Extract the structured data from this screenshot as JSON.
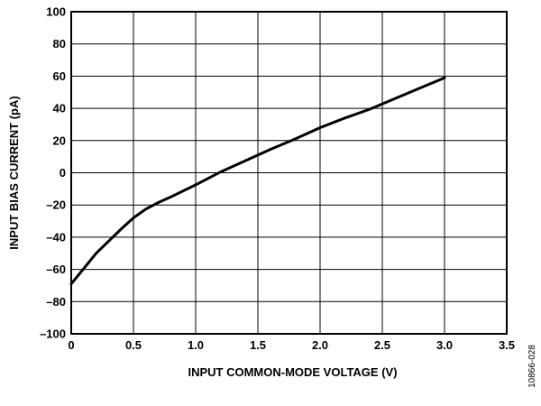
{
  "chart_data": {
    "type": "line",
    "title": "",
    "xlabel": "INPUT COMMON-MODE VOLTAGE (V)",
    "ylabel": "INPUT BIAS CURRENT (pA)",
    "xlim": [
      0,
      3.5
    ],
    "ylim": [
      -100,
      100
    ],
    "x_ticks": [
      0,
      0.5,
      1.0,
      1.5,
      2.0,
      2.5,
      3.0,
      3.5
    ],
    "x_tick_labels": [
      "0",
      "0.5",
      "1.0",
      "1.5",
      "2.0",
      "2.5",
      "3.0",
      "3.5"
    ],
    "y_ticks": [
      100,
      80,
      60,
      40,
      20,
      0,
      -20,
      -40,
      -60,
      -80,
      -100
    ],
    "y_tick_labels": [
      "100",
      "80",
      "60",
      "40",
      "20",
      "0",
      "–20",
      "–40",
      "–60",
      "–80",
      "–100"
    ],
    "grid": true,
    "legend": "none",
    "line_color": "#000000",
    "series": [
      {
        "x": [
          0.0,
          0.2,
          0.4,
          0.5,
          0.6,
          0.7,
          0.8,
          1.0,
          1.2,
          1.4,
          1.6,
          1.8,
          2.0,
          2.2,
          2.4,
          2.6,
          2.8,
          3.0
        ],
        "values": [
          -69,
          -50,
          -35,
          -28,
          -22.5,
          -18.5,
          -15,
          -7.5,
          0.5,
          7.5,
          14.5,
          21,
          28,
          34,
          39.5,
          46,
          52.5,
          59
        ]
      }
    ]
  },
  "figure_id": "10866-028"
}
